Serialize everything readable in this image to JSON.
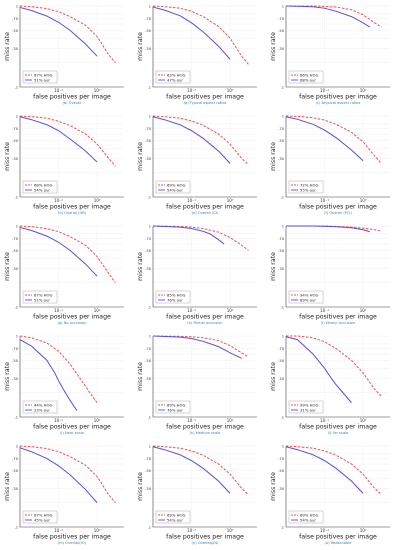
{
  "colors": {
    "hog": "#e8505b",
    "ours": "#5a4fcf",
    "axis": "#444444",
    "grid": "#dddddd",
    "caption": "#3a7fc1"
  },
  "shared": {
    "xlabel": "false positives per image",
    "ylabel": "miss rate",
    "xtick_labels": [
      "10⁻¹",
      "10⁰"
    ],
    "ytick_labels": [
      ".1",
      ".20",
      ".30",
      ".40",
      ".50",
      ".60",
      ".70",
      ".80",
      "1"
    ],
    "legend_hog_suffix": "HOG",
    "legend_ours_suffix": "our"
  },
  "chart_data": [
    {
      "type": "line",
      "caption": "(a) Overall",
      "xscale": "log",
      "yscale": "log",
      "series": [
        {
          "name": "67% HOG",
          "x": [
            0.01,
            0.02,
            0.05,
            0.1,
            0.2,
            0.5,
            1,
            2,
            3
          ],
          "y": [
            1,
            0.98,
            0.93,
            0.85,
            0.74,
            0.58,
            0.42,
            0.25,
            0.2
          ]
        },
        {
          "name": "51% our",
          "x": [
            0.01,
            0.02,
            0.05,
            0.1,
            0.2,
            0.5,
            1
          ],
          "y": [
            0.96,
            0.88,
            0.75,
            0.63,
            0.5,
            0.34,
            0.24
          ]
        }
      ]
    },
    {
      "type": "line",
      "caption": "(b) Typical aspect ratios",
      "xscale": "log",
      "yscale": "log",
      "series": [
        {
          "name": "63% HOG",
          "x": [
            0.01,
            0.02,
            0.05,
            0.1,
            0.2,
            0.5,
            1,
            2,
            3
          ],
          "y": [
            1,
            0.98,
            0.94,
            0.86,
            0.74,
            0.56,
            0.4,
            0.24,
            0.19
          ]
        },
        {
          "name": "47% our",
          "x": [
            0.01,
            0.02,
            0.05,
            0.1,
            0.2,
            0.5,
            1
          ],
          "y": [
            0.97,
            0.89,
            0.76,
            0.62,
            0.48,
            0.32,
            0.22
          ]
        }
      ]
    },
    {
      "type": "line",
      "caption": "(c) Atypical aspect ratios",
      "xscale": "log",
      "yscale": "log",
      "series": [
        {
          "name": "86% HOG",
          "x": [
            0.01,
            0.05,
            0.1,
            0.2,
            0.5,
            1,
            2,
            3
          ],
          "y": [
            1,
            1,
            0.99,
            0.97,
            0.9,
            0.78,
            0.62,
            0.55
          ]
        },
        {
          "name": "68% our",
          "x": [
            0.01,
            0.05,
            0.1,
            0.2,
            0.5,
            1,
            1.5
          ],
          "y": [
            1,
            0.98,
            0.94,
            0.86,
            0.74,
            0.62,
            0.55
          ]
        }
      ]
    },
    {
      "type": "line",
      "caption": "(d) Overall (HB)",
      "xscale": "log",
      "yscale": "log",
      "series": [
        {
          "name": "68% HOG",
          "x": [
            0.01,
            0.02,
            0.05,
            0.1,
            0.2,
            0.5,
            1,
            2,
            3
          ],
          "y": [
            1,
            0.98,
            0.94,
            0.86,
            0.76,
            0.6,
            0.45,
            0.3,
            0.24
          ]
        },
        {
          "name": "54% our",
          "x": [
            0.01,
            0.02,
            0.05,
            0.1,
            0.2,
            0.5,
            1
          ],
          "y": [
            0.98,
            0.9,
            0.78,
            0.66,
            0.52,
            0.37,
            0.27
          ]
        }
      ]
    },
    {
      "type": "line",
      "caption": "(e) Overall (CI)",
      "xscale": "log",
      "yscale": "log",
      "series": [
        {
          "name": "69% HOG",
          "x": [
            0.01,
            0.02,
            0.05,
            0.1,
            0.2,
            0.5,
            1,
            2,
            3
          ],
          "y": [
            1,
            0.98,
            0.94,
            0.87,
            0.77,
            0.6,
            0.45,
            0.3,
            0.25
          ]
        },
        {
          "name": "54% our",
          "x": [
            0.01,
            0.02,
            0.05,
            0.1,
            0.2,
            0.5,
            1
          ],
          "y": [
            0.98,
            0.9,
            0.78,
            0.66,
            0.53,
            0.37,
            0.26
          ]
        }
      ]
    },
    {
      "type": "line",
      "caption": "(f) Overall (PCI)",
      "xscale": "log",
      "yscale": "log",
      "series": [
        {
          "name": "72% HOG",
          "x": [
            0.01,
            0.02,
            0.05,
            0.1,
            0.2,
            0.5,
            1,
            2,
            3
          ],
          "y": [
            1,
            0.99,
            0.95,
            0.89,
            0.79,
            0.63,
            0.48,
            0.32,
            0.26
          ]
        },
        {
          "name": "55% our",
          "x": [
            0.01,
            0.02,
            0.05,
            0.1,
            0.2,
            0.5,
            1
          ],
          "y": [
            0.98,
            0.91,
            0.79,
            0.67,
            0.54,
            0.38,
            0.28
          ]
        }
      ]
    },
    {
      "type": "line",
      "caption": "(g) No occlusion",
      "xscale": "log",
      "yscale": "log",
      "series": [
        {
          "name": "67% HOG",
          "x": [
            0.01,
            0.02,
            0.05,
            0.1,
            0.2,
            0.5,
            1,
            2,
            3
          ],
          "y": [
            1,
            0.98,
            0.93,
            0.85,
            0.74,
            0.58,
            0.42,
            0.26,
            0.2
          ]
        },
        {
          "name": "51% our",
          "x": [
            0.01,
            0.02,
            0.05,
            0.1,
            0.2,
            0.5,
            1
          ],
          "y": [
            0.96,
            0.88,
            0.75,
            0.63,
            0.5,
            0.34,
            0.24
          ]
        }
      ]
    },
    {
      "type": "line",
      "caption": "(h) Partial occlusion",
      "xscale": "log",
      "yscale": "log",
      "series": [
        {
          "name": "85% HOG",
          "x": [
            0.01,
            0.05,
            0.1,
            0.2,
            0.5,
            1,
            2,
            3
          ],
          "y": [
            1,
            0.99,
            0.97,
            0.93,
            0.84,
            0.72,
            0.58,
            0.5
          ]
        },
        {
          "name": "76% our",
          "x": [
            0.01,
            0.05,
            0.1,
            0.2,
            0.3,
            0.5,
            0.7
          ],
          "y": [
            1,
            0.97,
            0.93,
            0.86,
            0.8,
            0.68,
            0.6
          ]
        }
      ]
    },
    {
      "type": "line",
      "caption": "(i) Heavy occlusion",
      "xscale": "log",
      "yscale": "log",
      "series": [
        {
          "name": "94% HOG",
          "x": [
            0.01,
            0.05,
            0.1,
            0.2,
            0.5,
            1,
            2,
            3
          ],
          "y": [
            1,
            1,
            1,
            0.99,
            0.97,
            0.94,
            0.9,
            0.86
          ]
        },
        {
          "name": "89% our",
          "x": [
            0.01,
            0.05,
            0.1,
            0.2,
            0.5,
            1,
            1.5
          ],
          "y": [
            1,
            1,
            0.99,
            0.98,
            0.95,
            0.9,
            0.85
          ]
        }
      ]
    },
    {
      "type": "line",
      "caption": "(j) Near scale",
      "xscale": "log",
      "yscale": "log",
      "series": [
        {
          "name": "44% HOG",
          "x": [
            0.01,
            0.02,
            0.05,
            0.1,
            0.2,
            0.3,
            0.5,
            0.7,
            1
          ],
          "y": [
            1,
            0.95,
            0.82,
            0.65,
            0.45,
            0.34,
            0.24,
            0.19,
            0.15
          ]
        },
        {
          "name": "23% our",
          "x": [
            0.01,
            0.02,
            0.05,
            0.08,
            0.1,
            0.15,
            0.2,
            0.3
          ],
          "y": [
            0.9,
            0.75,
            0.5,
            0.35,
            0.28,
            0.2,
            0.16,
            0.12
          ]
        }
      ]
    },
    {
      "type": "line",
      "caption": "(k) Medium scale",
      "xscale": "log",
      "yscale": "log",
      "series": [
        {
          "name": "89% HOG",
          "x": [
            0.01,
            0.05,
            0.1,
            0.2,
            0.5,
            1,
            2,
            3
          ],
          "y": [
            1,
            0.99,
            0.98,
            0.95,
            0.88,
            0.76,
            0.62,
            0.55
          ]
        },
        {
          "name": "76% our",
          "x": [
            0.01,
            0.05,
            0.1,
            0.2,
            0.5,
            1,
            2
          ],
          "y": [
            1,
            0.97,
            0.93,
            0.86,
            0.74,
            0.62,
            0.53
          ]
        }
      ]
    },
    {
      "type": "line",
      "caption": "(l) Far scale",
      "xscale": "log",
      "yscale": "log",
      "series": [
        {
          "name": "99% HOG",
          "x": [
            0.01,
            0.02,
            0.05,
            0.1,
            0.2,
            0.5,
            1,
            2,
            3
          ],
          "y": [
            1,
            1,
            0.95,
            0.85,
            0.7,
            0.5,
            0.35,
            0.22,
            0.18
          ]
        },
        {
          "name": "31% our",
          "x": [
            0.01,
            0.02,
            0.05,
            0.1,
            0.15,
            0.2,
            0.3,
            0.5
          ],
          "y": [
            0.98,
            0.9,
            0.6,
            0.4,
            0.3,
            0.25,
            0.2,
            0.15
          ]
        }
      ]
    },
    {
      "type": "line",
      "caption": "(m) Overlap(IO)",
      "xscale": "log",
      "yscale": "log",
      "series": [
        {
          "name": "67% HOG",
          "x": [
            0.01,
            0.02,
            0.05,
            0.1,
            0.2,
            0.5,
            1,
            2,
            3
          ],
          "y": [
            1,
            0.98,
            0.93,
            0.85,
            0.74,
            0.58,
            0.42,
            0.25,
            0.2
          ]
        },
        {
          "name": "45% our",
          "x": [
            0.01,
            0.02,
            0.05,
            0.1,
            0.2,
            0.5,
            1
          ],
          "y": [
            0.95,
            0.85,
            0.7,
            0.57,
            0.44,
            0.29,
            0.2
          ]
        }
      ]
    },
    {
      "type": "line",
      "caption": "(n) Overlap(IN)",
      "xscale": "log",
      "yscale": "log",
      "series": [
        {
          "name": "69% HOG",
          "x": [
            0.01,
            0.02,
            0.05,
            0.1,
            0.2,
            0.5,
            1,
            2,
            3
          ],
          "y": [
            1,
            0.98,
            0.94,
            0.87,
            0.77,
            0.6,
            0.45,
            0.3,
            0.25
          ]
        },
        {
          "name": "54% our",
          "x": [
            0.01,
            0.02,
            0.05,
            0.1,
            0.2,
            0.5,
            1
          ],
          "y": [
            0.98,
            0.9,
            0.78,
            0.66,
            0.53,
            0.37,
            0.26
          ]
        }
      ]
    },
    {
      "type": "line",
      "caption": "(o) Reasonable",
      "xscale": "log",
      "yscale": "log",
      "series": [
        {
          "name": "69% HOG",
          "x": [
            0.01,
            0.02,
            0.05,
            0.1,
            0.2,
            0.5,
            1,
            2,
            3
          ],
          "y": [
            1,
            0.98,
            0.94,
            0.87,
            0.77,
            0.6,
            0.45,
            0.3,
            0.25
          ]
        },
        {
          "name": "54% our",
          "x": [
            0.01,
            0.02,
            0.05,
            0.1,
            0.2,
            0.5,
            1
          ],
          "y": [
            0.98,
            0.9,
            0.78,
            0.66,
            0.53,
            0.37,
            0.26
          ]
        }
      ]
    }
  ]
}
